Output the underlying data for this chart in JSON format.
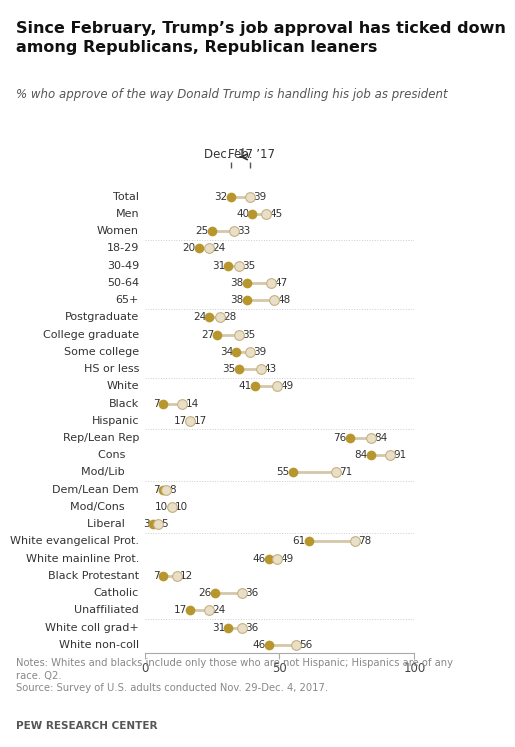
{
  "title": "Since February, Trump’s job approval has ticked down\namong Republicans, Republican leaners",
  "subtitle": "% who approve of the way Donald Trump is handling his job as president",
  "notes": "Notes: Whites and blacks include only those who are not Hispanic; Hispanics are of any\nrace. Q2.\nSource: Survey of U.S. adults conducted Nov. 29-Dec. 4, 2017.",
  "source_bold": "PEW RESEARCH CENTER",
  "categories": [
    "Total",
    "Men",
    "Women",
    "18-29",
    "30-49",
    "50-64",
    "65+",
    "Postgraduate",
    "College graduate",
    "Some college",
    "HS or less",
    "White",
    "Black",
    "Hispanic",
    "Rep/Lean Rep",
    "  Cons",
    "  Mod/Lib",
    "Dem/Lean Dem",
    "  Mod/Cons",
    "  Liberal",
    "White evangelical Prot.",
    "White mainline Prot.",
    "Black Protestant",
    "Catholic",
    "Unaffiliated",
    "White coll grad+",
    "White non-coll"
  ],
  "dec17": [
    32,
    40,
    25,
    20,
    31,
    38,
    38,
    24,
    27,
    34,
    35,
    41,
    7,
    17,
    76,
    84,
    55,
    7,
    10,
    3,
    61,
    46,
    7,
    26,
    17,
    31,
    46
  ],
  "feb17": [
    39,
    45,
    33,
    24,
    35,
    47,
    48,
    28,
    35,
    39,
    43,
    49,
    14,
    17,
    84,
    91,
    71,
    8,
    10,
    5,
    78,
    49,
    12,
    36,
    24,
    36,
    56
  ],
  "indented": [
    false,
    false,
    false,
    false,
    false,
    false,
    false,
    false,
    false,
    false,
    false,
    false,
    false,
    false,
    false,
    true,
    true,
    false,
    true,
    true,
    false,
    false,
    false,
    false,
    false,
    false,
    false
  ],
  "dividers_after": [
    2,
    6,
    10,
    13,
    16,
    19,
    24
  ],
  "color_dec": "#b8962e",
  "color_feb": "#e8dfc8",
  "color_feb_edge": "#c8b080",
  "color_line": "#d4c8a8",
  "color_divider": "#cccccc",
  "bg_color": "#ffffff",
  "xlim": [
    0,
    100
  ],
  "xticks": [
    0,
    50,
    100
  ],
  "title_fontsize": 11.5,
  "subtitle_fontsize": 8.5,
  "label_fontsize": 8.0,
  "value_fontsize": 7.5,
  "tick_fontsize": 8.5,
  "notes_fontsize": 7.2,
  "legend_fontsize": 8.5
}
